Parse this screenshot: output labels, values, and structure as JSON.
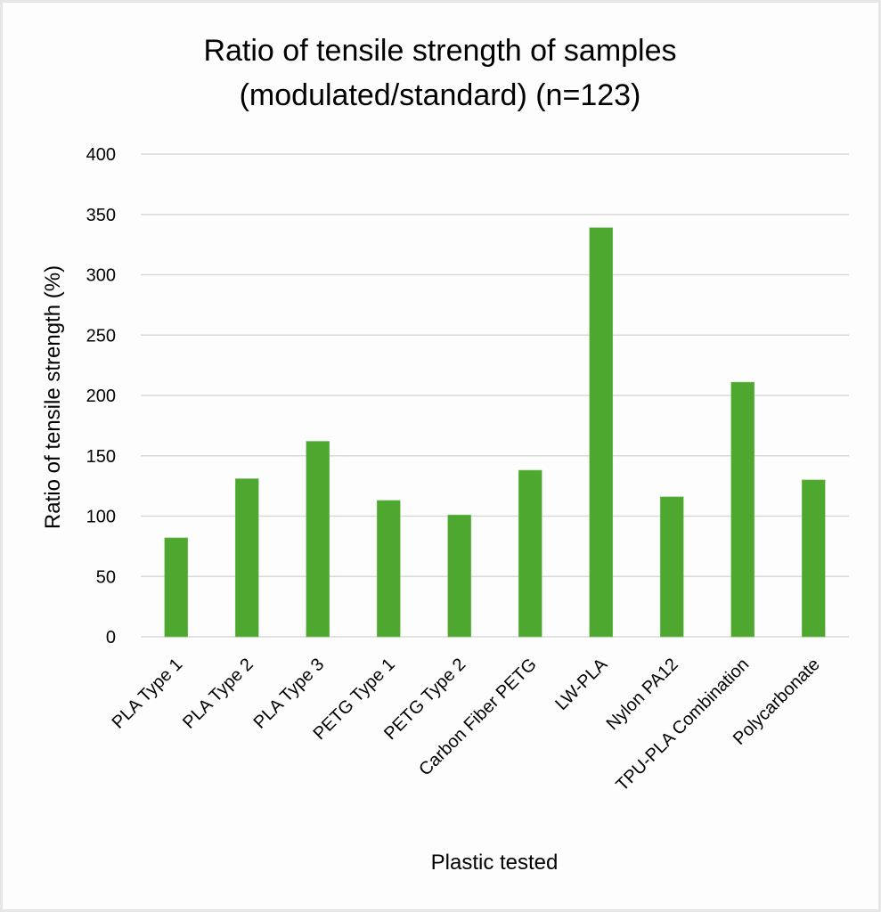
{
  "chart_data": {
    "type": "bar",
    "title": [
      "Ratio of tensile strength of samples",
      "(modulated/standard) (n=123)"
    ],
    "xlabel": "Plastic tested",
    "ylabel": "Ratio of tensile strength (%)",
    "ylim": [
      0,
      400
    ],
    "yticks": [
      0,
      50,
      100,
      150,
      200,
      250,
      300,
      350,
      400
    ],
    "ytick_labels": [
      "0",
      "50",
      "100",
      "150",
      "200",
      "250",
      "300",
      "350",
      "400"
    ],
    "grid": true,
    "legend": "none",
    "categories": [
      "PLA Type 1",
      "PLA Type 2",
      "PLA Type 3",
      "PETG Type 1",
      "PETG Type 2",
      "Carbon Fiber PETG",
      "LW-PLA",
      "Nylon PA12",
      "TPU-PLA Combination",
      "Polycarbonate"
    ],
    "series": [
      {
        "name": "Ratio of tensile strength",
        "color": "#4ea72e",
        "values": [
          82,
          131,
          162,
          113,
          101,
          138,
          339,
          116,
          211,
          130
        ]
      }
    ],
    "colors": {
      "bar": "#4ea72e",
      "grid": "#d9d9d9",
      "text": "#000000"
    }
  }
}
